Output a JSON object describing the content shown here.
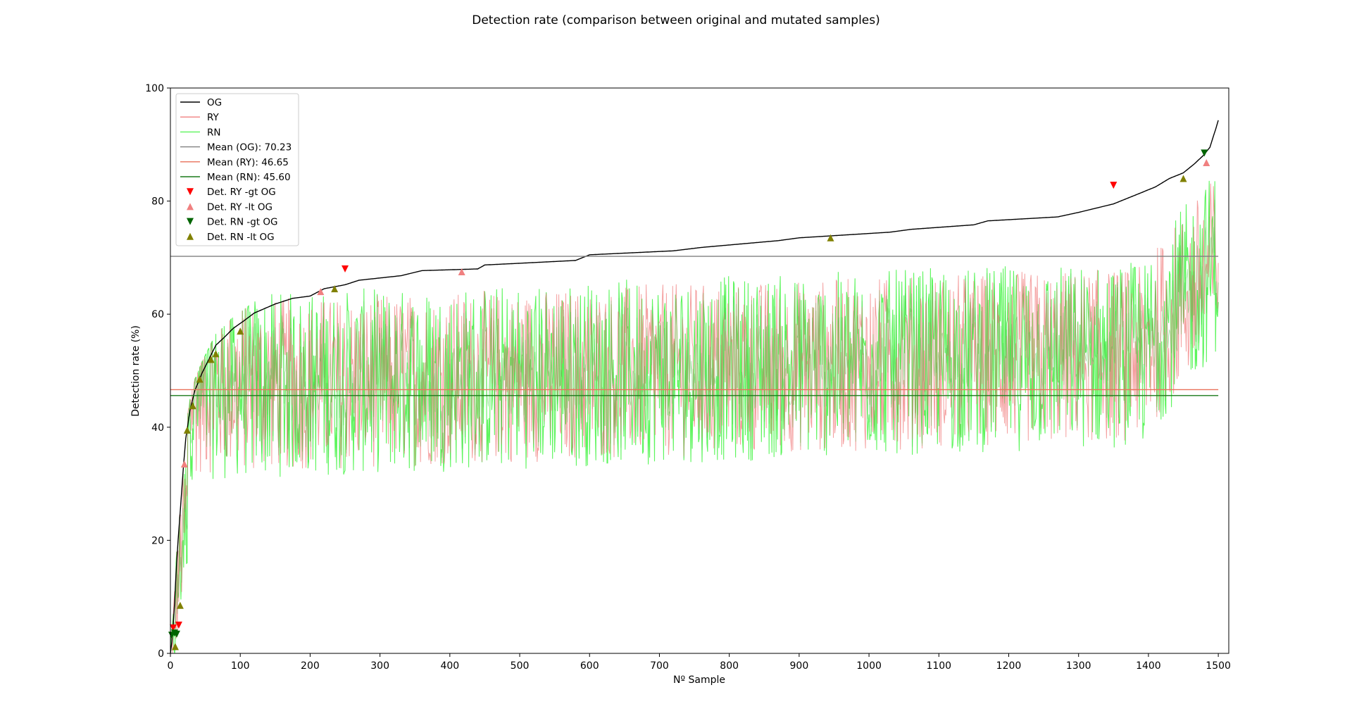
{
  "chart_data": {
    "type": "line",
    "title": "Detection rate (comparison between original and mutated samples)",
    "xlabel": "Nº Sample",
    "ylabel": "Detection rate (%)",
    "xlim": [
      0,
      1515
    ],
    "ylim": [
      0,
      100
    ],
    "x_ticks": [
      0,
      100,
      200,
      300,
      400,
      500,
      600,
      700,
      800,
      900,
      1000,
      1100,
      1200,
      1300,
      1400,
      1500
    ],
    "y_ticks": [
      0,
      20,
      40,
      60,
      80,
      100
    ],
    "legend_position": "top-left",
    "grid": false,
    "n_samples": 1500,
    "colors": {
      "OG": "#000000",
      "RY": "#f08080",
      "RN": "#5df55d",
      "mean_OG": "#808080",
      "mean_RY": "#e9715a",
      "mean_RN": "#1a7a1a",
      "det_ry_gt": "#ff0000",
      "det_ry_lt": "#f08080",
      "det_rn_gt": "#006400",
      "det_rn_lt": "#808000"
    },
    "og_curve": [
      [
        0,
        0
      ],
      [
        2,
        2
      ],
      [
        4,
        5
      ],
      [
        6,
        9
      ],
      [
        8,
        14
      ],
      [
        11,
        20
      ],
      [
        14,
        25
      ],
      [
        18,
        32
      ],
      [
        22,
        38
      ],
      [
        28,
        43
      ],
      [
        35,
        46.5
      ],
      [
        45,
        49.5
      ],
      [
        55,
        52
      ],
      [
        65,
        54.5
      ],
      [
        78,
        56
      ],
      [
        90,
        57.5
      ],
      [
        105,
        58.8
      ],
      [
        120,
        60.2
      ],
      [
        150,
        61.8
      ],
      [
        175,
        62.8
      ],
      [
        200,
        63.2
      ],
      [
        220,
        64.5
      ],
      [
        250,
        65.2
      ],
      [
        270,
        66
      ],
      [
        330,
        66.8
      ],
      [
        360,
        67.7
      ],
      [
        440,
        68
      ],
      [
        450,
        68.7
      ],
      [
        500,
        69
      ],
      [
        580,
        69.5
      ],
      [
        600,
        70.5
      ],
      [
        720,
        71.2
      ],
      [
        760,
        71.8
      ],
      [
        870,
        73
      ],
      [
        900,
        73.5
      ],
      [
        1030,
        74.5
      ],
      [
        1060,
        75
      ],
      [
        1150,
        75.8
      ],
      [
        1170,
        76.5
      ],
      [
        1270,
        77.2
      ],
      [
        1300,
        78
      ],
      [
        1350,
        79.5
      ],
      [
        1380,
        81
      ],
      [
        1410,
        82.5
      ],
      [
        1430,
        84
      ],
      [
        1450,
        85
      ],
      [
        1465,
        86.5
      ],
      [
        1478,
        88
      ],
      [
        1488,
        89.5
      ],
      [
        1493,
        91.5
      ],
      [
        1497,
        93
      ],
      [
        1500,
        94.3
      ]
    ],
    "series": [
      {
        "name": "OG",
        "style": "line"
      },
      {
        "name": "RY",
        "style": "line"
      },
      {
        "name": "RN",
        "style": "line"
      },
      {
        "name": "Mean (OG): 70.23",
        "style": "hline",
        "value": 70.23
      },
      {
        "name": "Mean (RY): 46.65",
        "style": "hline",
        "value": 46.65
      },
      {
        "name": "Mean (RN): 45.60",
        "style": "hline",
        "value": 45.6
      },
      {
        "name": "Det. RY -gt OG",
        "style": "marker-down",
        "points": [
          [
            4,
            4.5
          ],
          [
            12,
            5
          ],
          [
            250,
            68
          ],
          [
            1350,
            82.8
          ]
        ]
      },
      {
        "name": "Det. RY -lt OG",
        "style": "marker-up",
        "points": [
          [
            20,
            33.5
          ],
          [
            215,
            64
          ],
          [
            417,
            67.5
          ],
          [
            1483,
            86.8
          ]
        ]
      },
      {
        "name": "Det. RN -gt OG",
        "style": "marker-down",
        "points": [
          [
            2,
            3.2
          ],
          [
            6,
            3.6
          ],
          [
            9,
            3.4
          ],
          [
            1480,
            88.5
          ]
        ]
      },
      {
        "name": "Det. RN -lt OG",
        "style": "marker-up",
        "points": [
          [
            7,
            1.2
          ],
          [
            14,
            8.5
          ],
          [
            24,
            39.5
          ],
          [
            32,
            43.8
          ],
          [
            42,
            48.5
          ],
          [
            58,
            52
          ],
          [
            65,
            53
          ],
          [
            100,
            57
          ],
          [
            235,
            64.5
          ],
          [
            945,
            73.5
          ],
          [
            1450,
            84
          ]
        ]
      }
    ]
  }
}
